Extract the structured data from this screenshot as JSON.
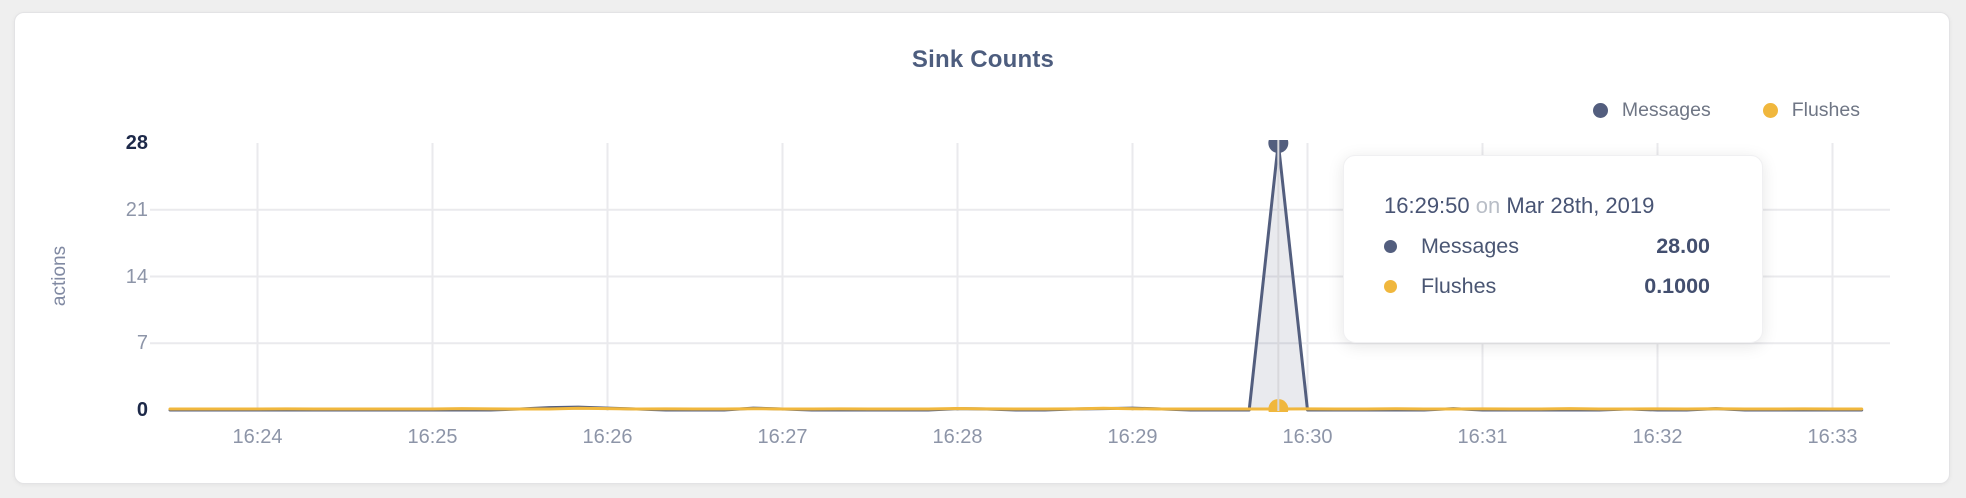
{
  "card": {
    "title": "Sink Counts"
  },
  "legend": {
    "items": [
      {
        "label": "Messages",
        "color": "#535e7e"
      },
      {
        "label": "Flushes",
        "color": "#f0b73d"
      }
    ]
  },
  "tooltip": {
    "time": "16:29:50",
    "connector": "on",
    "date": "Mar 28th, 2019",
    "rows": [
      {
        "label": "Messages",
        "value": "28.00",
        "color": "#535e7e"
      },
      {
        "label": "Flushes",
        "value": "0.1000",
        "color": "#f0b73d"
      }
    ]
  },
  "colors": {
    "messages": "#535e7e",
    "flushes": "#f0b73d",
    "area_fill": "rgba(83,94,126,0.13)",
    "grid": "#eaeaed",
    "crosshair": "#d8d8dc",
    "tick_gray": "#8d95a8",
    "tick_dark": "#1d2949"
  },
  "chart_data": {
    "type": "line",
    "title": "Sink Counts",
    "xlabel": "",
    "ylabel": "actions",
    "ylim": [
      0,
      28
    ],
    "grid": true,
    "legend_position": "top-right",
    "y_ticks": [
      {
        "label": "28",
        "value": 28,
        "emphasized": true,
        "gridline": false
      },
      {
        "label": "21",
        "value": 21,
        "emphasized": false,
        "gridline": true
      },
      {
        "label": "14",
        "value": 14,
        "emphasized": false,
        "gridline": true
      },
      {
        "label": "7",
        "value": 7,
        "emphasized": false,
        "gridline": true
      },
      {
        "label": "0",
        "value": 0,
        "emphasized": true,
        "gridline": false
      }
    ],
    "x_tick_labels": [
      "16:24",
      "16:25",
      "16:26",
      "16:27",
      "16:28",
      "16:29",
      "16:30",
      "16:31",
      "16:32",
      "16:33"
    ],
    "x": [
      "16:23:30",
      "16:23:40",
      "16:23:50",
      "16:24:00",
      "16:24:10",
      "16:24:20",
      "16:24:30",
      "16:24:40",
      "16:24:50",
      "16:25:00",
      "16:25:10",
      "16:25:20",
      "16:25:30",
      "16:25:40",
      "16:25:50",
      "16:26:00",
      "16:26:10",
      "16:26:20",
      "16:26:30",
      "16:26:40",
      "16:26:50",
      "16:27:00",
      "16:27:10",
      "16:27:20",
      "16:27:30",
      "16:27:40",
      "16:27:50",
      "16:28:00",
      "16:28:10",
      "16:28:20",
      "16:28:30",
      "16:28:40",
      "16:28:50",
      "16:29:00",
      "16:29:10",
      "16:29:20",
      "16:29:30",
      "16:29:40",
      "16:29:50",
      "16:30:00",
      "16:30:10",
      "16:30:20",
      "16:30:30",
      "16:30:40",
      "16:30:50",
      "16:31:00",
      "16:31:10",
      "16:31:20",
      "16:31:30",
      "16:31:40",
      "16:31:50",
      "16:32:00",
      "16:32:10",
      "16:32:20",
      "16:32:30",
      "16:32:40",
      "16:32:50",
      "16:33:00",
      "16:33:10"
    ],
    "series": [
      {
        "name": "Messages",
        "color": "#535e7e",
        "fill": "rgba(83,94,126,0.13)",
        "values": [
          0,
          0,
          0,
          0,
          0,
          0,
          0,
          0,
          0,
          0,
          0,
          0,
          0.1,
          0.25,
          0.3,
          0.2,
          0.1,
          0,
          0,
          0,
          0.2,
          0.1,
          0,
          0,
          0,
          0,
          0,
          0.15,
          0.1,
          0,
          0,
          0.1,
          0.15,
          0.2,
          0.1,
          0,
          0,
          0,
          28,
          0,
          0,
          0,
          0,
          0,
          0.15,
          0,
          0,
          0,
          0,
          0,
          0.1,
          0,
          0,
          0.15,
          0,
          0,
          0,
          0,
          0
        ]
      },
      {
        "name": "Flushes",
        "color": "#f0b73d",
        "fill": null,
        "values": [
          0.1,
          0.1,
          0.1,
          0.1,
          0.12,
          0.1,
          0.1,
          0.1,
          0.1,
          0.1,
          0.15,
          0.12,
          0.1,
          0.1,
          0.18,
          0.15,
          0.1,
          0.12,
          0.1,
          0.1,
          0.14,
          0.1,
          0.1,
          0.12,
          0.1,
          0.1,
          0.1,
          0.16,
          0.12,
          0.1,
          0.1,
          0.12,
          0.18,
          0.14,
          0.1,
          0.1,
          0.1,
          0.1,
          0.1,
          0.12,
          0.1,
          0.1,
          0.14,
          0.1,
          0.1,
          0.12,
          0.1,
          0.1,
          0.15,
          0.1,
          0.1,
          0.12,
          0.1,
          0.14,
          0.1,
          0.1,
          0.12,
          0.1,
          0.1
        ]
      }
    ],
    "hover": {
      "time": "16:29:50",
      "date": "Mar 28th, 2019",
      "values": {
        "Messages": 28.0,
        "Flushes": 0.1
      }
    }
  }
}
